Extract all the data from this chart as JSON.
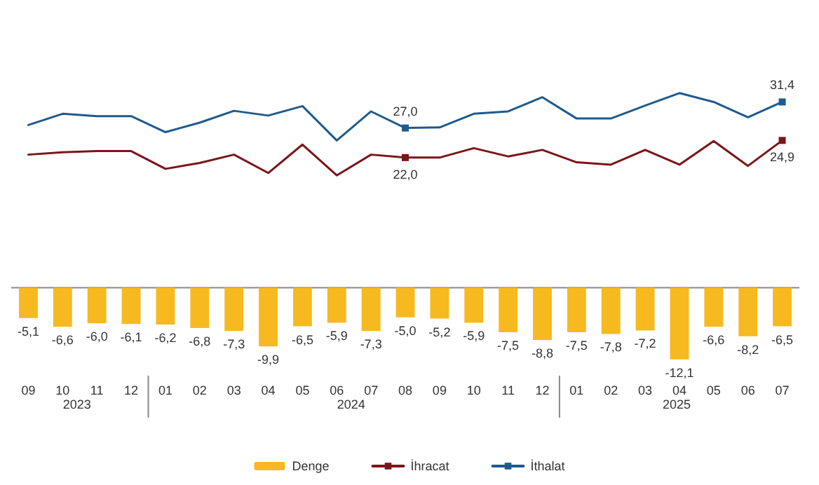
{
  "chart_data": {
    "type": "bar",
    "categories": [
      "09",
      "10",
      "11",
      "12",
      "01",
      "02",
      "03",
      "04",
      "05",
      "06",
      "07",
      "08",
      "09",
      "10",
      "11",
      "12",
      "01",
      "02",
      "03",
      "04",
      "05",
      "06",
      "07"
    ],
    "series": [
      {
        "name": "Denge",
        "color": "#f6b91f",
        "values": [
          -5.1,
          -6.6,
          -6.0,
          -6.1,
          -6.2,
          -6.8,
          -7.3,
          -9.9,
          -6.5,
          -5.9,
          -7.3,
          -5.0,
          -5.2,
          -5.9,
          -7.5,
          -8.8,
          -7.5,
          -7.8,
          -7.2,
          -12.1,
          -6.6,
          -8.2,
          -6.5
        ],
        "value_labels": [
          "-5,1",
          "-6,6",
          "-6,0",
          "-6,1",
          "-6,2",
          "-6,8",
          "-7,3",
          "-9,9",
          "-6,5",
          "-5,9",
          "-7,3",
          "-5,0",
          "-5,2",
          "-5,9",
          "-7,5",
          "-8,8",
          "-7,5",
          "-7,8",
          "-7,2",
          "-12,1",
          "-6,6",
          "-8,2",
          "-6,5"
        ]
      },
      {
        "name": "İhracat",
        "type": "line",
        "color": "#7b1518",
        "values": [
          22.5,
          22.9,
          23.1,
          23.1,
          20.1,
          21.1,
          22.5,
          19.4,
          24.2,
          19.0,
          22.5,
          22.0,
          22.0,
          23.6,
          22.2,
          23.3,
          21.2,
          20.8,
          23.3,
          20.8,
          24.8,
          20.6,
          24.9
        ],
        "value_labels": [
          null,
          null,
          null,
          null,
          null,
          null,
          null,
          null,
          null,
          null,
          null,
          "22,0",
          null,
          null,
          null,
          null,
          null,
          null,
          null,
          null,
          null,
          null,
          "24,9"
        ]
      },
      {
        "name": "İthalat",
        "type": "line",
        "color": "#1f5a8c",
        "values": [
          27.5,
          29.4,
          29.0,
          29.0,
          26.3,
          27.9,
          29.9,
          29.1,
          30.7,
          24.9,
          29.8,
          27.0,
          27.1,
          29.4,
          29.8,
          32.2,
          28.6,
          28.6,
          30.8,
          32.9,
          31.4,
          28.8,
          31.4
        ],
        "value_labels": [
          null,
          null,
          null,
          null,
          null,
          null,
          null,
          null,
          null,
          null,
          null,
          "27,0",
          null,
          null,
          null,
          null,
          null,
          null,
          null,
          null,
          null,
          null,
          "31,4"
        ]
      }
    ],
    "annotations": [
      "2023",
      "2024",
      "2025"
    ],
    "tick_labels": "x",
    "line_style": "solid",
    "legend": "bottom",
    "grid": false
  }
}
